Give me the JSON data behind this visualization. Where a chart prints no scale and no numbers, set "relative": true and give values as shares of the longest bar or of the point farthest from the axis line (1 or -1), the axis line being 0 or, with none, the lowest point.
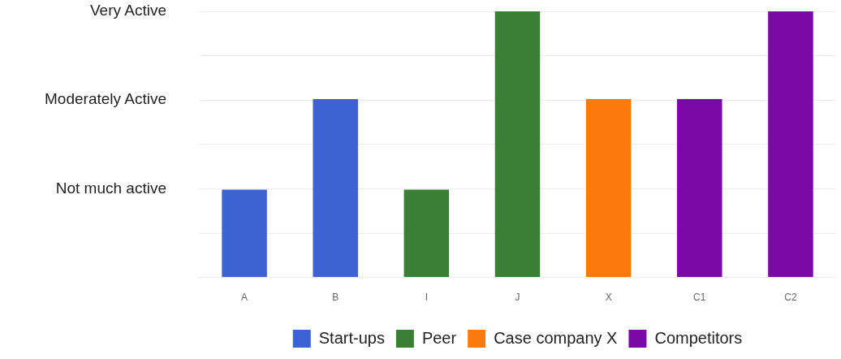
{
  "chart_data": {
    "type": "bar",
    "relative": true,
    "categories": [
      "A",
      "B",
      "I",
      "J",
      "X",
      "C1",
      "C2"
    ],
    "series": [
      {
        "name": "Start-ups",
        "color": "#3d63d2",
        "values": [
          0.33,
          0.67,
          null,
          null,
          null,
          null,
          null
        ]
      },
      {
        "name": "Peer",
        "color": "#3a8034",
        "values": [
          null,
          null,
          0.33,
          1,
          null,
          null,
          null
        ]
      },
      {
        "name": "Case company X",
        "color": "#fa7a0c",
        "values": [
          null,
          null,
          null,
          null,
          0.67,
          null,
          null
        ]
      },
      {
        "name": "Competitors",
        "color": "#7a0aa6",
        "values": [
          null,
          null,
          null,
          null,
          null,
          0.67,
          1
        ]
      }
    ],
    "annotations": [
      "Very Active",
      "Moderately Active",
      "Not much active"
    ],
    "grid": "y",
    "legend": "bottom"
  }
}
